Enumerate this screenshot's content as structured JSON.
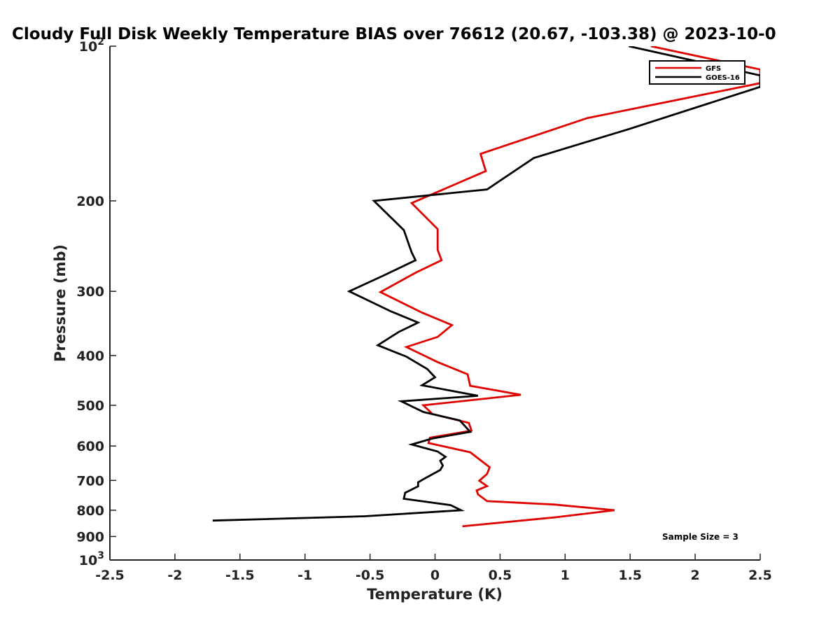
{
  "chart_data": {
    "type": "line",
    "title": "Cloudy Full Disk Weekly Temperature BIAS over 76612 (20.67, -103.38) @ 2023-10-0",
    "xlabel": "Temperature (K)",
    "ylabel": "Pressure (mb)",
    "xlim": [
      -2.5,
      2.5
    ],
    "ylim": [
      100,
      1000
    ],
    "y_scale": "log",
    "y_reversed": true,
    "grid": false,
    "legend_position": "top-right",
    "x_ticks": [
      -2.5,
      -2,
      -1.5,
      -1,
      -0.5,
      0,
      0.5,
      1,
      1.5,
      2,
      2.5
    ],
    "x_tick_labels": [
      "-2.5",
      "-2",
      "-1.5",
      "-1",
      "-0.5",
      "0",
      "0.5",
      "1",
      "1.5",
      "2",
      "2.5"
    ],
    "y_ticks": [
      100,
      200,
      300,
      400,
      500,
      600,
      700,
      800,
      900,
      1000
    ],
    "y_tick_labels": [
      {
        "base": "10",
        "exp": "2"
      },
      {
        "base": "200",
        "exp": ""
      },
      {
        "base": "300",
        "exp": ""
      },
      {
        "base": "400",
        "exp": ""
      },
      {
        "base": "500",
        "exp": ""
      },
      {
        "base": "600",
        "exp": ""
      },
      {
        "base": "700",
        "exp": ""
      },
      {
        "base": "800",
        "exp": ""
      },
      {
        "base": "900",
        "exp": ""
      },
      {
        "base": "10",
        "exp": "3"
      }
    ],
    "series": [
      {
        "name": "GFS",
        "color": "#e00000",
        "points": [
          [
            1.66,
            100
          ],
          [
            2.5,
            111
          ],
          [
            2.5,
            118
          ],
          [
            1.17,
            138
          ],
          [
            0.35,
            162
          ],
          [
            0.39,
            175
          ],
          [
            -0.18,
            202
          ],
          [
            0.02,
            227
          ],
          [
            0.02,
            249
          ],
          [
            0.05,
            261
          ],
          [
            -0.15,
            276
          ],
          [
            -0.42,
            301
          ],
          [
            -0.1,
            330
          ],
          [
            0.13,
            349
          ],
          [
            0.02,
            368
          ],
          [
            -0.22,
            385
          ],
          [
            0.02,
            412
          ],
          [
            0.25,
            435
          ],
          [
            0.27,
            458
          ],
          [
            0.66,
            477
          ],
          [
            -0.09,
            500
          ],
          [
            -0.02,
            520
          ],
          [
            0.26,
            541
          ],
          [
            0.28,
            560
          ],
          [
            -0.04,
            578
          ],
          [
            -0.05,
            592
          ],
          [
            0.27,
            617
          ],
          [
            0.42,
            660
          ],
          [
            0.4,
            680
          ],
          [
            0.34,
            701
          ],
          [
            0.4,
            718
          ],
          [
            0.32,
            732
          ],
          [
            0.33,
            745
          ],
          [
            0.4,
            768
          ],
          [
            0.92,
            780
          ],
          [
            1.38,
            800
          ],
          [
            0.92,
            826
          ],
          [
            0.21,
            860
          ]
        ]
      },
      {
        "name": "GOES-16",
        "color": "#000000",
        "points": [
          [
            1.49,
            100
          ],
          [
            2.5,
            114
          ],
          [
            2.5,
            120
          ],
          [
            1.49,
            145
          ],
          [
            0.76,
            165
          ],
          [
            0.4,
            190
          ],
          [
            -0.47,
            200
          ],
          [
            -0.24,
            228
          ],
          [
            -0.18,
            252
          ],
          [
            -0.15,
            261
          ],
          [
            -0.39,
            279
          ],
          [
            -0.66,
            300
          ],
          [
            -0.34,
            328
          ],
          [
            -0.13,
            345
          ],
          [
            -0.28,
            360
          ],
          [
            -0.44,
            382
          ],
          [
            -0.22,
            402
          ],
          [
            -0.06,
            425
          ],
          [
            0.0,
            441
          ],
          [
            -0.1,
            457
          ],
          [
            0.33,
            479
          ],
          [
            -0.26,
            491
          ],
          [
            -0.09,
            515
          ],
          [
            0.19,
            535
          ],
          [
            0.27,
            563
          ],
          [
            -0.02,
            580
          ],
          [
            -0.18,
            596
          ],
          [
            0.02,
            615
          ],
          [
            0.08,
            630
          ],
          [
            0.04,
            641
          ],
          [
            0.06,
            655
          ],
          [
            0.04,
            668
          ],
          [
            -0.02,
            681
          ],
          [
            -0.08,
            694
          ],
          [
            -0.13,
            706
          ],
          [
            -0.13,
            719
          ],
          [
            -0.23,
            740
          ],
          [
            -0.24,
            760
          ],
          [
            0.12,
            782
          ],
          [
            0.2,
            800
          ],
          [
            -0.54,
            822
          ],
          [
            -1.71,
            838
          ]
        ]
      }
    ],
    "legend": [
      "GFS",
      "GOES-16"
    ],
    "annotations": [
      {
        "text": "Sample Size = 3",
        "x": 2.2,
        "p": 900
      }
    ]
  }
}
